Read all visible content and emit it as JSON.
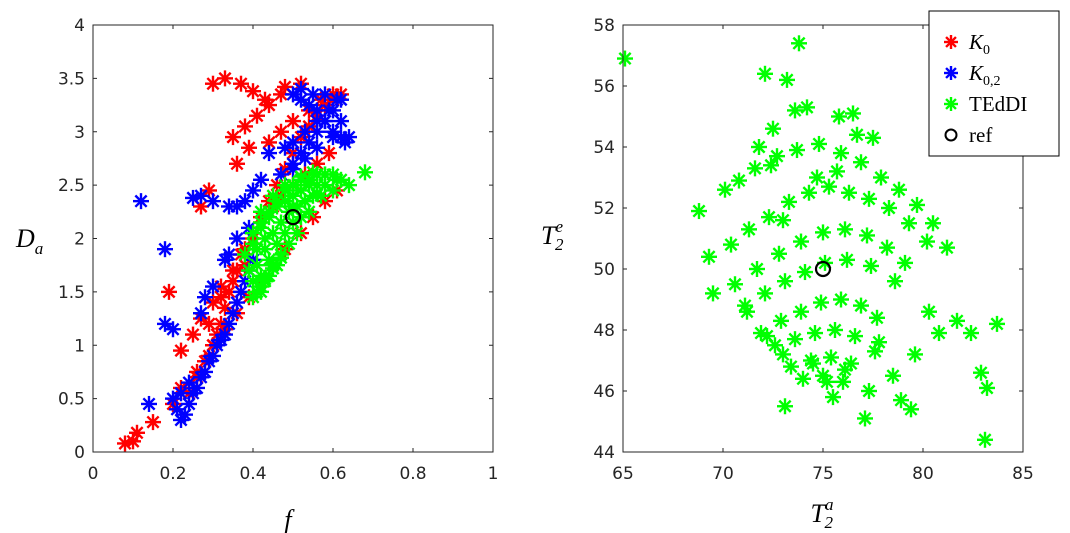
{
  "chart_data": [
    {
      "type": "scatter",
      "xlabel": "f",
      "ylabel_main": "D",
      "ylabel_sub": "a",
      "xlim": [
        0,
        1
      ],
      "ylim": [
        0,
        4
      ],
      "xticks": [
        "0",
        "0.2",
        "0.4",
        "0.6",
        "0.8",
        "1"
      ],
      "yticks": [
        "0",
        "0.5",
        "1",
        "1.5",
        "2",
        "2.5",
        "3",
        "3.5",
        "4"
      ],
      "grid": false,
      "series": [
        {
          "name": "K0",
          "color": "#ff0000",
          "marker": "asterisk",
          "x": [
            0.08,
            0.1,
            0.11,
            0.15,
            0.2,
            0.22,
            0.26,
            0.29,
            0.3,
            0.31,
            0.32,
            0.33,
            0.34,
            0.36,
            0.38,
            0.4,
            0.42,
            0.44,
            0.46,
            0.48,
            0.5,
            0.52,
            0.54,
            0.56,
            0.58,
            0.6,
            0.62,
            0.3,
            0.33,
            0.37,
            0.4,
            0.43,
            0.48,
            0.52,
            0.35,
            0.38,
            0.41,
            0.44,
            0.47,
            0.27,
            0.29,
            0.19,
            0.22,
            0.25,
            0.27,
            0.3,
            0.32,
            0.35,
            0.37,
            0.4,
            0.42,
            0.45,
            0.47,
            0.5,
            0.53,
            0.56,
            0.59,
            0.44,
            0.47,
            0.5,
            0.54,
            0.57,
            0.6,
            0.24,
            0.26,
            0.28,
            0.3,
            0.33,
            0.36,
            0.39,
            0.42,
            0.45,
            0.48,
            0.52,
            0.55,
            0.58,
            0.61,
            0.35,
            0.38,
            0.32,
            0.29,
            0.36,
            0.39
          ],
          "y": [
            0.08,
            0.1,
            0.18,
            0.28,
            0.45,
            0.6,
            0.75,
            0.9,
            1.0,
            1.1,
            1.2,
            1.35,
            1.5,
            1.7,
            1.9,
            2.05,
            2.2,
            2.35,
            2.5,
            2.65,
            2.8,
            2.95,
            3.05,
            3.15,
            3.25,
            3.3,
            3.35,
            3.45,
            3.5,
            3.45,
            3.38,
            3.3,
            3.42,
            3.45,
            2.95,
            3.05,
            3.15,
            3.25,
            3.35,
            2.3,
            2.45,
            1.5,
            0.95,
            1.1,
            1.25,
            1.4,
            1.55,
            1.7,
            1.85,
            2.0,
            2.15,
            2.3,
            2.4,
            2.5,
            2.6,
            2.7,
            2.8,
            2.9,
            3.0,
            3.1,
            3.2,
            3.3,
            3.35,
            0.55,
            0.7,
            0.85,
            1.0,
            1.15,
            1.3,
            1.45,
            1.6,
            1.75,
            1.9,
            2.05,
            2.2,
            2.35,
            2.45,
            1.6,
            1.75,
            1.45,
            1.2,
            2.7,
            2.85
          ]
        },
        {
          "name": "K0,2",
          "color": "#0000ff",
          "marker": "asterisk",
          "x": [
            0.12,
            0.14,
            0.18,
            0.18,
            0.2,
            0.21,
            0.22,
            0.23,
            0.24,
            0.25,
            0.26,
            0.27,
            0.28,
            0.29,
            0.3,
            0.31,
            0.32,
            0.33,
            0.34,
            0.35,
            0.36,
            0.37,
            0.38,
            0.39,
            0.4,
            0.25,
            0.27,
            0.3,
            0.34,
            0.36,
            0.38,
            0.4,
            0.42,
            0.5,
            0.52,
            0.54,
            0.56,
            0.58,
            0.6,
            0.62,
            0.5,
            0.52,
            0.54,
            0.56,
            0.58,
            0.6,
            0.62,
            0.48,
            0.5,
            0.53,
            0.56,
            0.59,
            0.62,
            0.47,
            0.5,
            0.53,
            0.56,
            0.6,
            0.63,
            0.52,
            0.55,
            0.58,
            0.61,
            0.64,
            0.33,
            0.36,
            0.39,
            0.44,
            0.28,
            0.3,
            0.27,
            0.34,
            0.2,
            0.22,
            0.24
          ],
          "y": [
            2.35,
            0.45,
            1.9,
            1.2,
            1.15,
            0.4,
            0.3,
            0.35,
            0.45,
            0.55,
            0.6,
            0.7,
            0.75,
            0.85,
            0.9,
            1.0,
            1.05,
            1.1,
            1.2,
            1.3,
            1.4,
            1.5,
            1.6,
            1.7,
            1.8,
            2.38,
            2.4,
            2.35,
            2.3,
            2.3,
            2.35,
            2.45,
            2.55,
            2.7,
            2.8,
            2.9,
            3.0,
            3.1,
            3.2,
            3.3,
            3.35,
            3.3,
            3.25,
            3.2,
            3.1,
            3.0,
            2.95,
            2.85,
            2.9,
            3.0,
            3.1,
            3.2,
            3.1,
            2.6,
            2.65,
            2.75,
            2.85,
            2.95,
            2.9,
            3.4,
            3.35,
            3.35,
            3.3,
            2.95,
            1.8,
            2.0,
            2.1,
            2.8,
            1.45,
            1.55,
            1.3,
            1.85,
            0.5,
            0.55,
            0.65
          ]
        },
        {
          "name": "TEdDI",
          "color": "#00ff00",
          "marker": "asterisk",
          "x": [
            0.38,
            0.4,
            0.42,
            0.44,
            0.46,
            0.48,
            0.5,
            0.52,
            0.54,
            0.56,
            0.58,
            0.6,
            0.62,
            0.64,
            0.68,
            0.4,
            0.42,
            0.44,
            0.46,
            0.48,
            0.5,
            0.52,
            0.54,
            0.56,
            0.58,
            0.6,
            0.41,
            0.43,
            0.45,
            0.47,
            0.49,
            0.51,
            0.53,
            0.55,
            0.57,
            0.42,
            0.44,
            0.46,
            0.48,
            0.5,
            0.52,
            0.54,
            0.43,
            0.45,
            0.47,
            0.49,
            0.51,
            0.41,
            0.43,
            0.45,
            0.47,
            0.4,
            0.42,
            0.44,
            0.46,
            0.41,
            0.43,
            0.42,
            0.45,
            0.48,
            0.52,
            0.55,
            0.58,
            0.61,
            0.39,
            0.4,
            0.42,
            0.5,
            0.53,
            0.56
          ],
          "y": [
            1.85,
            2.05,
            2.15,
            2.25,
            2.35,
            2.45,
            2.5,
            2.55,
            2.55,
            2.6,
            2.6,
            2.6,
            2.55,
            2.5,
            2.62,
            1.95,
            2.1,
            2.2,
            2.3,
            2.35,
            2.4,
            2.45,
            2.5,
            2.5,
            2.5,
            2.45,
            1.75,
            1.9,
            2.05,
            2.15,
            2.25,
            2.3,
            2.35,
            2.4,
            2.4,
            1.65,
            1.8,
            1.95,
            2.05,
            2.15,
            2.2,
            2.25,
            1.6,
            1.75,
            1.85,
            1.95,
            2.05,
            1.5,
            1.62,
            1.72,
            1.82,
            1.45,
            1.55,
            1.65,
            1.75,
            1.9,
            2.0,
            2.25,
            2.4,
            2.5,
            2.58,
            2.62,
            2.6,
            2.55,
            1.7,
            1.6,
            1.5,
            2.3,
            2.35,
            2.42
          ]
        }
      ],
      "reference": {
        "name": "ref",
        "x": 0.5,
        "y": 2.2
      }
    },
    {
      "type": "scatter",
      "xlabel_main": "T",
      "xlabel_sub": "2",
      "xlabel_sup": "a",
      "ylabel_main": "T",
      "ylabel_sub": "2",
      "ylabel_sup": "e",
      "xlim": [
        65,
        85
      ],
      "ylim": [
        44,
        58
      ],
      "xticks": [
        "65",
        "70",
        "75",
        "80",
        "85"
      ],
      "yticks": [
        "44",
        "46",
        "48",
        "50",
        "52",
        "54",
        "56",
        "58"
      ],
      "grid": false,
      "series": [
        {
          "name": "TEdDI",
          "color": "#00ff00",
          "marker": "asterisk",
          "x": [
            65.1,
            73.8,
            72.1,
            73.2,
            68.8,
            69.3,
            69.5,
            71.2,
            72.2,
            73.0,
            74.5,
            75.2,
            76.1,
            77.3,
            78.5,
            79.6,
            80.8,
            81.7,
            82.4,
            82.9,
            83.2,
            83.7,
            83.1,
            79.4,
            77.1,
            75.5,
            73.1,
            77.8,
            78.9,
            80.3,
            76.5,
            77.5,
            81.2,
            72.5,
            73.6,
            74.2,
            75.8,
            76.7,
            70.1,
            70.8,
            71.6,
            72.7,
            73.7,
            74.8,
            75.9,
            76.9,
            77.9,
            78.8,
            79.7,
            80.5,
            70.4,
            71.3,
            72.3,
            73.3,
            74.3,
            75.3,
            76.3,
            77.3,
            78.3,
            79.3,
            80.2,
            70.6,
            71.7,
            72.8,
            73.9,
            75.0,
            76.1,
            77.2,
            78.2,
            79.1,
            71.1,
            72.1,
            73.1,
            74.1,
            75.1,
            76.2,
            77.4,
            78.6,
            71.9,
            72.9,
            73.9,
            74.9,
            75.9,
            76.9,
            77.7,
            72.6,
            73.6,
            74.6,
            75.6,
            76.6,
            77.6,
            73.4,
            74.4,
            75.4,
            76.4,
            74.0,
            75.0,
            76.0,
            74.7,
            75.7,
            71.8,
            72.4,
            73.0
          ],
          "y": [
            56.9,
            57.4,
            56.4,
            56.2,
            51.9,
            50.4,
            49.2,
            48.6,
            47.8,
            47.2,
            46.9,
            46.3,
            46.7,
            46.0,
            46.5,
            47.2,
            47.9,
            48.3,
            47.9,
            46.6,
            46.1,
            48.2,
            44.4,
            45.4,
            45.1,
            45.8,
            45.5,
            47.6,
            45.7,
            48.6,
            55.1,
            54.3,
            50.7,
            54.6,
            55.2,
            55.3,
            55.0,
            54.4,
            52.6,
            52.9,
            53.3,
            53.7,
            53.9,
            54.1,
            53.8,
            53.5,
            53.0,
            52.6,
            52.1,
            51.5,
            50.8,
            51.3,
            51.7,
            52.2,
            52.5,
            52.7,
            52.5,
            52.3,
            52.0,
            51.5,
            50.9,
            49.5,
            50.0,
            50.5,
            50.9,
            51.2,
            51.3,
            51.1,
            50.7,
            50.2,
            48.8,
            49.2,
            49.6,
            49.9,
            50.2,
            50.3,
            50.1,
            49.6,
            47.9,
            48.3,
            48.6,
            48.9,
            49.0,
            48.8,
            48.4,
            47.5,
            47.7,
            47.9,
            48.0,
            47.8,
            47.3,
            46.8,
            47.0,
            47.1,
            46.9,
            46.4,
            46.5,
            46.3,
            53.0,
            53.2,
            54.0,
            53.4,
            51.6
          ]
        }
      ],
      "reference": {
        "name": "ref",
        "x": 75,
        "y": 50
      }
    }
  ],
  "legend": {
    "placement": "top-right",
    "entries": [
      {
        "main": "K",
        "sub": "0",
        "color": "#ff0000",
        "marker": "asterisk"
      },
      {
        "main": "K",
        "sub": "0,2",
        "color": "#0000ff",
        "marker": "asterisk"
      },
      {
        "main": "TEdDI",
        "sub": "",
        "color": "#00ff00",
        "marker": "asterisk"
      },
      {
        "main": "ref",
        "sub": "",
        "color": "#000000",
        "marker": "circle"
      }
    ]
  }
}
